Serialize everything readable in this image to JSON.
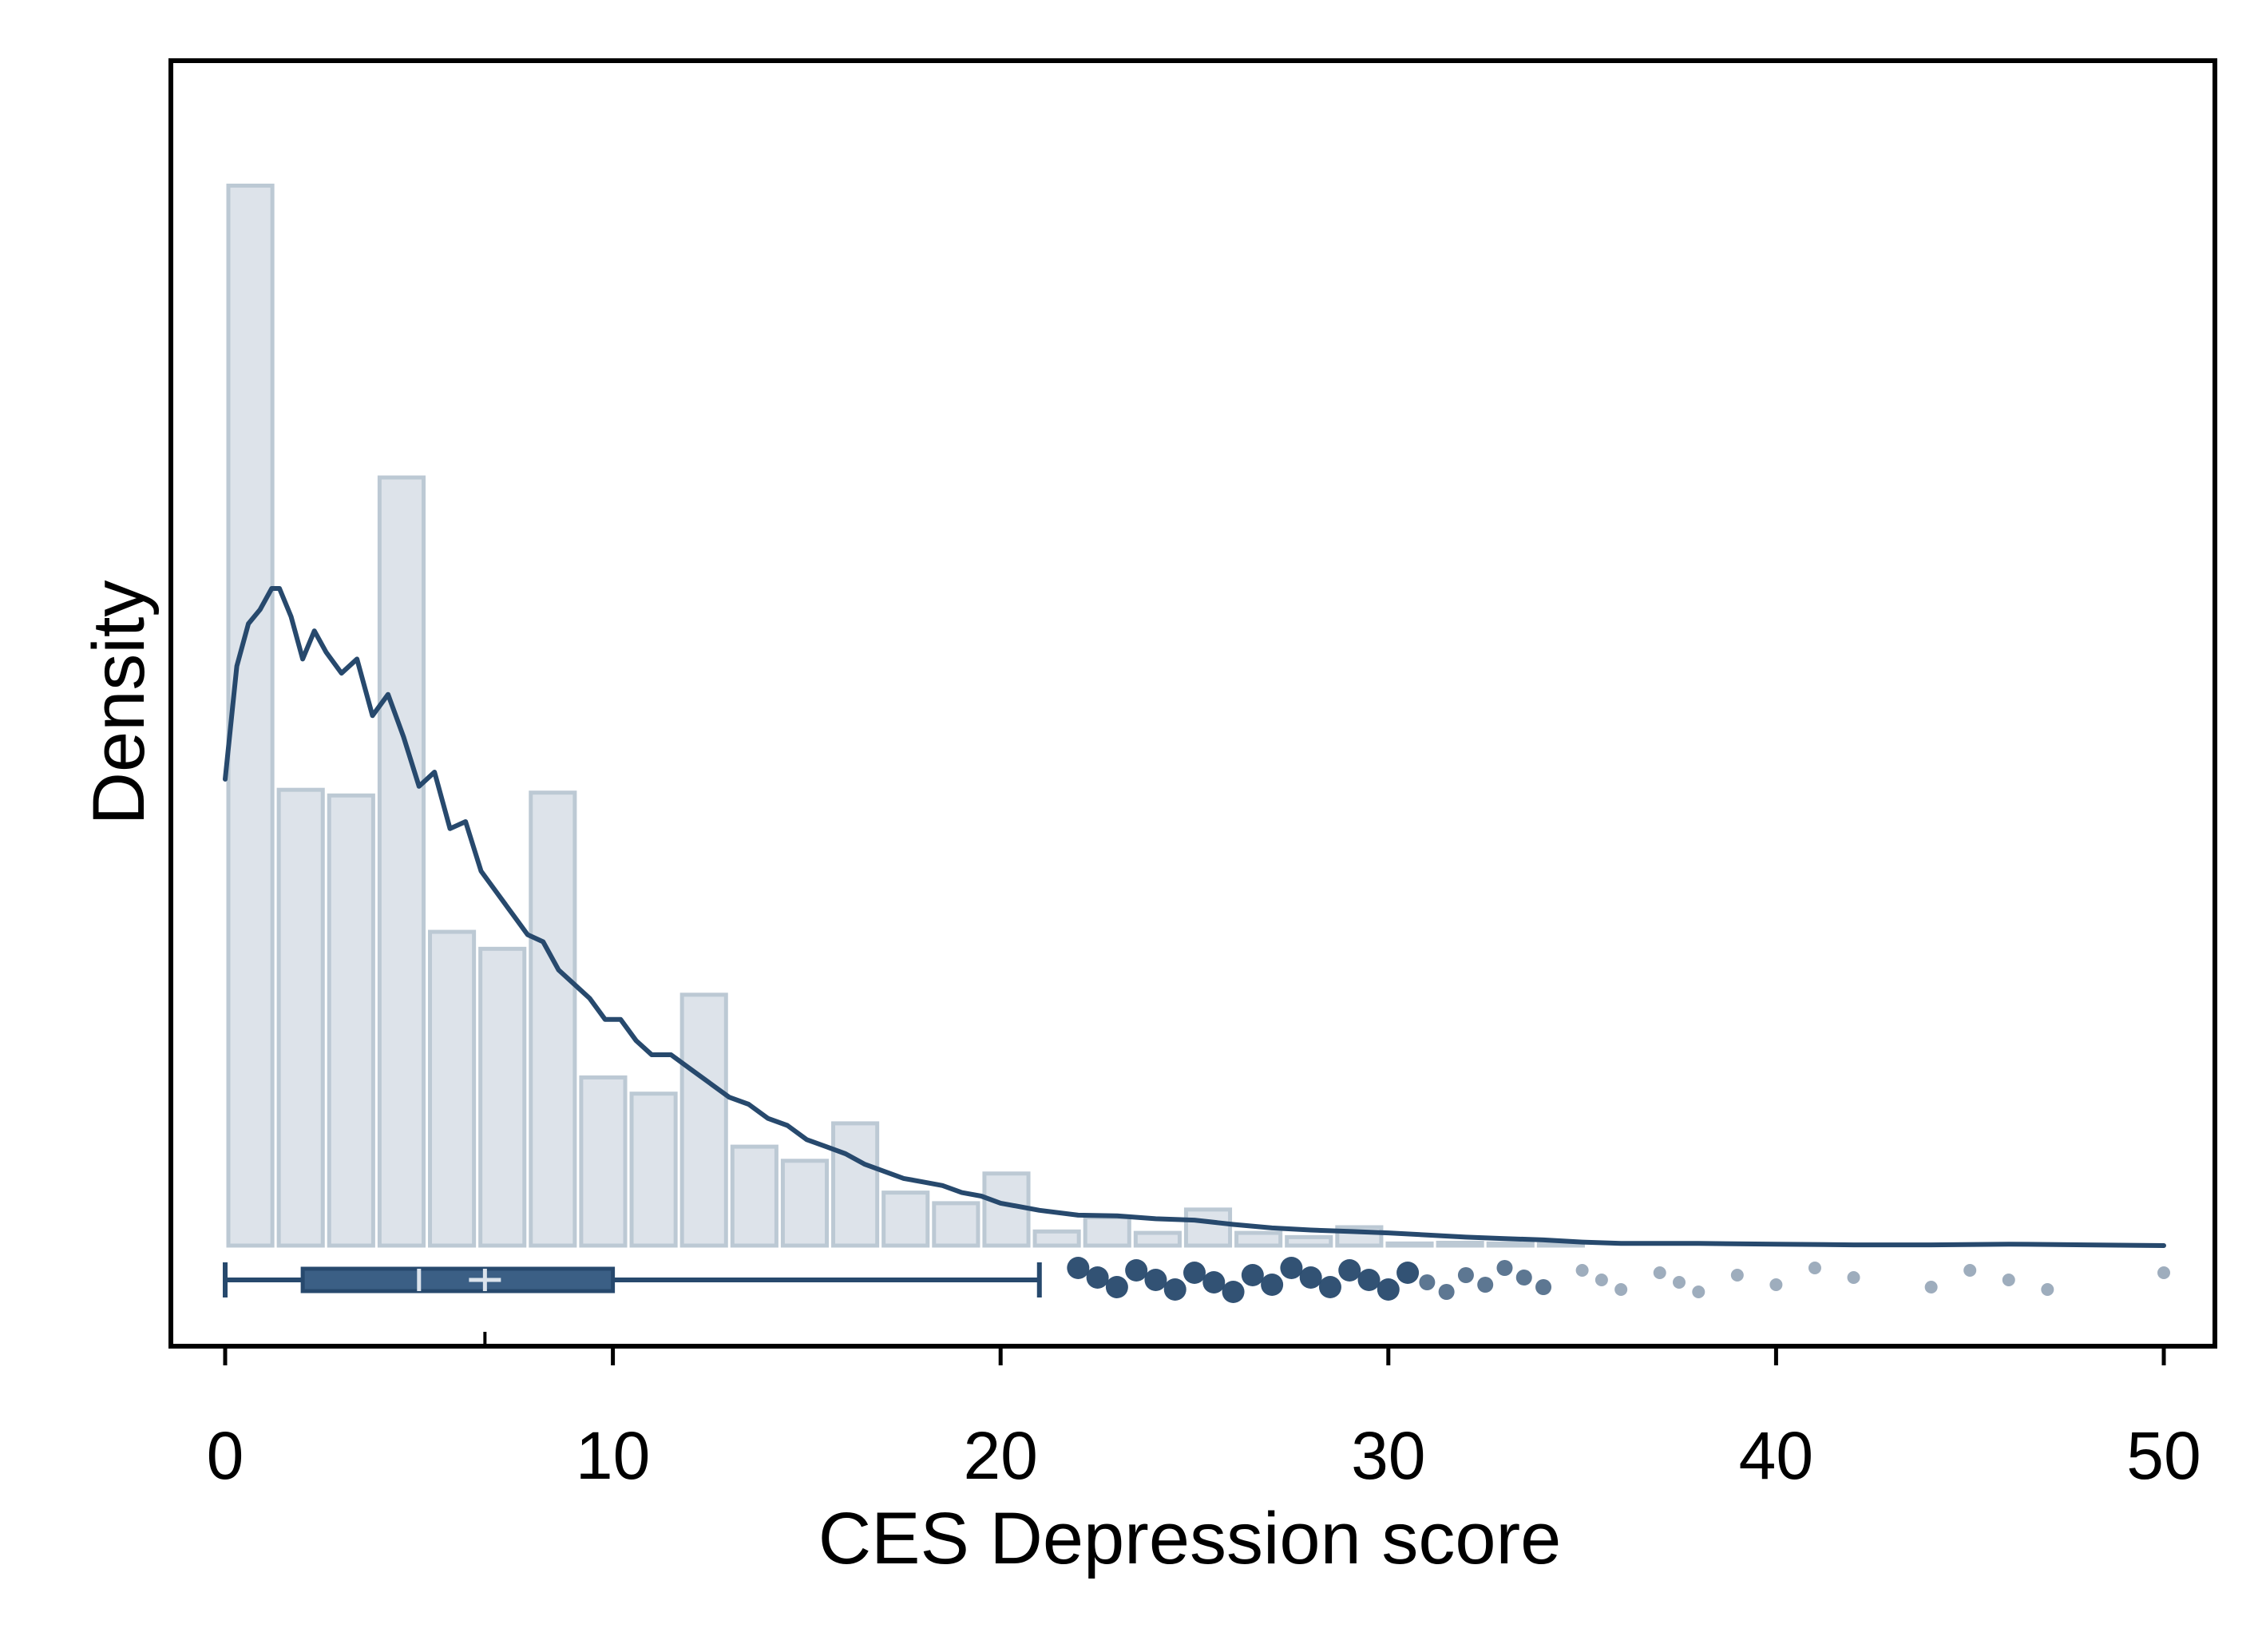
{
  "chart_data": {
    "type": "histogram",
    "xlabel": "CES Depression score",
    "ylabel": "Density",
    "xlim": [
      0,
      50
    ],
    "ylim": [
      0,
      0.16
    ],
    "xticks": [
      "0",
      "10",
      "20",
      "30",
      "40",
      "50"
    ],
    "xtick_values": [
      0,
      10,
      20,
      30,
      40,
      50
    ],
    "histogram": {
      "bin_width": 1.3,
      "bins": [
        {
          "x0": 0.0,
          "x1": 1.3,
          "density": 0.15
        },
        {
          "x0": 1.3,
          "x1": 2.6,
          "density": 0.0645
        },
        {
          "x0": 2.6,
          "x1": 3.9,
          "density": 0.0637
        },
        {
          "x0": 3.9,
          "x1": 5.2,
          "density": 0.1087
        },
        {
          "x0": 5.2,
          "x1": 6.5,
          "density": 0.0444
        },
        {
          "x0": 6.5,
          "x1": 7.8,
          "density": 0.042
        },
        {
          "x0": 7.8,
          "x1": 9.1,
          "density": 0.0641
        },
        {
          "x0": 9.1,
          "x1": 10.4,
          "density": 0.0238
        },
        {
          "x0": 10.4,
          "x1": 11.7,
          "density": 0.0215
        },
        {
          "x0": 11.7,
          "x1": 13.0,
          "density": 0.0355
        },
        {
          "x0": 13.0,
          "x1": 14.3,
          "density": 0.014
        },
        {
          "x0": 14.3,
          "x1": 15.6,
          "density": 0.012
        },
        {
          "x0": 15.6,
          "x1": 16.9,
          "density": 0.0173
        },
        {
          "x0": 16.9,
          "x1": 18.2,
          "density": 0.0075
        },
        {
          "x0": 18.2,
          "x1": 19.5,
          "density": 0.006
        },
        {
          "x0": 19.5,
          "x1": 20.8,
          "density": 0.0102
        },
        {
          "x0": 20.8,
          "x1": 22.1,
          "density": 0.002
        },
        {
          "x0": 22.1,
          "x1": 23.4,
          "density": 0.004
        },
        {
          "x0": 23.4,
          "x1": 24.7,
          "density": 0.0018
        },
        {
          "x0": 24.7,
          "x1": 26.0,
          "density": 0.0051
        },
        {
          "x0": 26.0,
          "x1": 27.3,
          "density": 0.0018
        },
        {
          "x0": 27.3,
          "x1": 28.6,
          "density": 0.0012
        },
        {
          "x0": 28.6,
          "x1": 29.9,
          "density": 0.0026
        },
        {
          "x0": 29.9,
          "x1": 31.2,
          "density": 0.0003
        },
        {
          "x0": 31.2,
          "x1": 32.5,
          "density": 0.0004
        },
        {
          "x0": 32.5,
          "x1": 33.8,
          "density": 0.0003
        },
        {
          "x0": 33.8,
          "x1": 35.1,
          "density": 0.0002
        }
      ]
    },
    "density_curve": {
      "x": [
        0,
        0.3,
        0.6,
        0.9,
        1.2,
        1.4,
        1.7,
        2.0,
        2.3,
        2.6,
        3.0,
        3.4,
        3.8,
        4.2,
        4.6,
        5.0,
        5.4,
        5.8,
        6.2,
        6.6,
        7.0,
        7.4,
        7.8,
        8.2,
        8.6,
        9.0,
        9.4,
        9.8,
        10.2,
        10.6,
        11.0,
        11.5,
        12.0,
        12.5,
        13.0,
        13.5,
        14.0,
        14.5,
        15.0,
        15.5,
        16.0,
        16.5,
        17.0,
        17.5,
        18.0,
        18.5,
        19.0,
        19.5,
        20.0,
        21.0,
        22.0,
        23.0,
        24.0,
        25.0,
        26.0,
        27.0,
        28.0,
        29.0,
        30.0,
        31.0,
        32.0,
        33.0,
        34.0,
        35.0,
        36.0,
        38.0,
        40.0,
        42.0,
        44.0,
        46.0,
        48.0,
        50.0
      ],
      "y": [
        0.066,
        0.082,
        0.088,
        0.09,
        0.093,
        0.093,
        0.089,
        0.083,
        0.087,
        0.084,
        0.081,
        0.083,
        0.075,
        0.078,
        0.072,
        0.065,
        0.067,
        0.059,
        0.06,
        0.053,
        0.05,
        0.047,
        0.044,
        0.043,
        0.039,
        0.037,
        0.035,
        0.032,
        0.032,
        0.029,
        0.027,
        0.027,
        0.025,
        0.023,
        0.021,
        0.02,
        0.018,
        0.017,
        0.015,
        0.014,
        0.013,
        0.0115,
        0.0105,
        0.0095,
        0.009,
        0.0085,
        0.0075,
        0.007,
        0.006,
        0.005,
        0.0043,
        0.0042,
        0.0038,
        0.0036,
        0.003,
        0.0025,
        0.0022,
        0.002,
        0.0018,
        0.0015,
        0.0012,
        0.001,
        0.0008,
        0.0005,
        0.0003,
        0.0003,
        0.0002,
        0.0001,
        0.0001,
        0.0002,
        0.0001,
        0.0
      ]
    },
    "boxplot": {
      "min": 0,
      "q1": 2,
      "median": 5,
      "mean": 6.7,
      "q3": 10,
      "whisker_high": 21,
      "outliers": [
        22,
        22.5,
        23,
        23.5,
        24,
        24.5,
        25,
        25.5,
        26,
        26.5,
        27,
        27.5,
        28,
        28.5,
        29,
        29.5,
        30,
        30.5,
        31,
        31.5,
        32,
        32.5,
        33,
        33.5,
        34,
        35,
        35.5,
        36,
        37,
        37.5,
        38,
        39,
        40,
        41,
        42,
        44,
        45,
        46,
        47,
        50
      ]
    },
    "grid": false,
    "legend": "none",
    "colors": {
      "bar_fill": "#dde3ea",
      "bar_edge": "#bcc9d4",
      "curve": "#27496d",
      "box_fill": "#3b5f85",
      "outline": "#000000"
    }
  }
}
